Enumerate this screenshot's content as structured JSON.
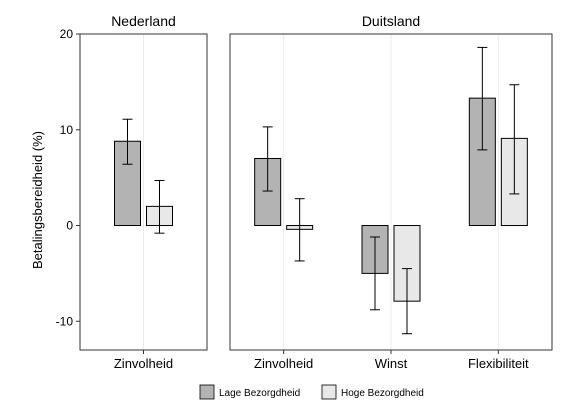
{
  "chart_data": {
    "type": "bar",
    "ylabel": "Betalingsbereidheid (%)",
    "ylim": [
      -13,
      20
    ],
    "yticks": [
      -10,
      0,
      10,
      20
    ],
    "grid": true,
    "legend_position": "bottom",
    "series": [
      {
        "name": "Lage Bezorgdheid",
        "color": "#b3b3b3"
      },
      {
        "name": "Hoge Bezorgdheid",
        "color": "#e8e8e8"
      }
    ],
    "panels": [
      {
        "title": "Nederland",
        "categories": [
          "Zinvolheid"
        ],
        "values": [
          [
            8.8
          ],
          [
            2.0
          ]
        ],
        "error_low": [
          [
            6.4
          ],
          [
            -0.8
          ]
        ],
        "error_high": [
          [
            11.1
          ],
          [
            4.7
          ]
        ]
      },
      {
        "title": "Duitsland",
        "categories": [
          "Zinvolheid",
          "Winst",
          "Flexibiliteit"
        ],
        "values": [
          [
            7.0,
            -5.0,
            13.3
          ],
          [
            -0.4,
            -7.9,
            9.1
          ]
        ],
        "error_low": [
          [
            3.6,
            -8.8,
            7.9
          ],
          [
            -3.7,
            -11.3,
            3.3
          ]
        ],
        "error_high": [
          [
            10.3,
            -1.2,
            18.6
          ],
          [
            2.8,
            -4.5,
            14.7
          ]
        ]
      }
    ]
  }
}
